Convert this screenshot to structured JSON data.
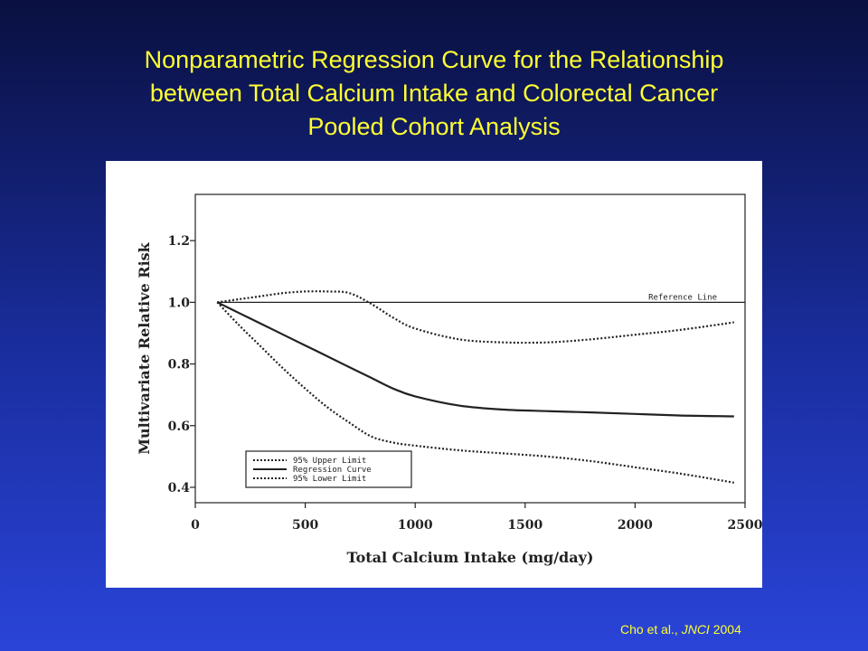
{
  "slide": {
    "title_lines": [
      "Nonparametric Regression Curve for the Relationship",
      "between Total Calcium Intake and Colorectal Cancer",
      "Pooled Cohort Analysis"
    ],
    "citation": {
      "authors": "Cho et al., ",
      "journal": "JNCI",
      "year": " 2004"
    },
    "colors": {
      "background_top": "#0a1040",
      "background_bottom": "#2a44d8",
      "title": "#ffff33"
    }
  },
  "chart_data": {
    "type": "line",
    "xlabel": "Total Calcium Intake (mg/day)",
    "ylabel": "Multivariate Relative Risk",
    "xlim": [
      0,
      2500
    ],
    "ylim": [
      0.35,
      1.35
    ],
    "x_ticks": [
      0,
      500,
      1000,
      1500,
      2000,
      2500
    ],
    "x_tick_labels": [
      "0",
      "500",
      "1000",
      "1500",
      "2000",
      "2500"
    ],
    "y_ticks": [
      0.4,
      0.6,
      0.8,
      1.0,
      1.2
    ],
    "y_tick_labels": [
      "0.4",
      "0.6",
      "0.8",
      "1.0",
      "1.2"
    ],
    "reference_line": {
      "y": 1.0,
      "label": "Reference Line"
    },
    "legend": {
      "placement": "bottom-left",
      "entries": [
        "95% Upper Limit",
        "Regression Curve",
        "95% Lower Limit"
      ]
    },
    "x": [
      100,
      200,
      300,
      400,
      500,
      600,
      700,
      800,
      900,
      1000,
      1200,
      1400,
      1600,
      1800,
      2000,
      2200,
      2450
    ],
    "series": [
      {
        "name": "95% Upper Limit",
        "style": "dotted",
        "values": [
          1.0,
          1.01,
          1.02,
          1.03,
          1.035,
          1.035,
          1.03,
          0.995,
          0.95,
          0.915,
          0.88,
          0.87,
          0.87,
          0.88,
          0.895,
          0.91,
          0.935
        ]
      },
      {
        "name": "Regression Curve",
        "style": "solid",
        "values": [
          1.0,
          0.965,
          0.93,
          0.895,
          0.86,
          0.825,
          0.79,
          0.755,
          0.72,
          0.695,
          0.665,
          0.652,
          0.647,
          0.643,
          0.638,
          0.633,
          0.63
        ]
      },
      {
        "name": "95% Lower Limit",
        "style": "dotted",
        "values": [
          1.0,
          0.925,
          0.855,
          0.785,
          0.72,
          0.66,
          0.61,
          0.565,
          0.545,
          0.535,
          0.52,
          0.51,
          0.5,
          0.485,
          0.465,
          0.445,
          0.415
        ]
      }
    ]
  }
}
